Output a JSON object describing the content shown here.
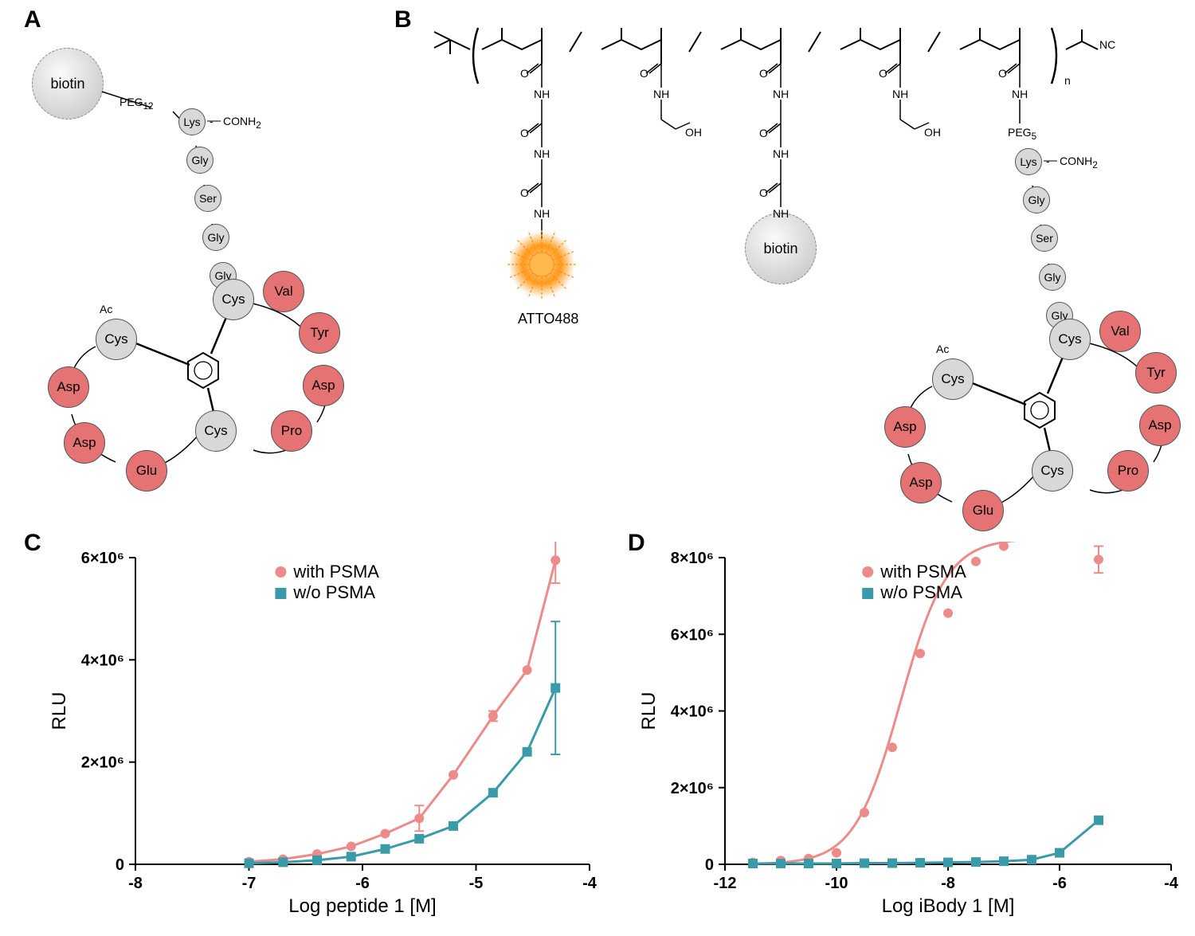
{
  "panels": {
    "A": "A",
    "B": "B",
    "C": "C",
    "D": "D"
  },
  "biotin_label": "biotin",
  "atto_label": "ATTO488",
  "peg12": "PEG",
  "peg12_sub": "12",
  "peg5": "PEG",
  "peg5_sub": "5",
  "conh2": "CONH",
  "conh2_sub": "2",
  "ac_label": "Ac",
  "nc_label": "NC",
  "n_sub": "n",
  "amino_acids": {
    "Lys": "Lys",
    "Gly": "Gly",
    "Ser": "Ser",
    "Cys": "Cys",
    "Val": "Val",
    "Tyr": "Tyr",
    "Asp": "Asp",
    "Pro": "Pro",
    "Glu": "Glu"
  },
  "chem_atoms": {
    "O": "O",
    "NH": "NH",
    "OH": "OH"
  },
  "legend": {
    "with": "with PSMA",
    "without": "w/o PSMA"
  },
  "colors": {
    "pink": "#e57373",
    "teal": "#3a9ba8",
    "pink_line": "#ed8b8b",
    "teal_line": "#3a9ba8",
    "axis": "#000000",
    "bg": "#ffffff"
  },
  "chartC": {
    "xlabel": "Log peptide 1 [M]",
    "ylabel": "RLU",
    "xlim": [
      -8,
      -4
    ],
    "ylim": [
      0,
      6000000.0
    ],
    "xticks": [
      -8,
      -7,
      -6,
      -5,
      -4
    ],
    "yticks": [
      0,
      2000000.0,
      4000000.0,
      6000000.0
    ],
    "ytick_labels": [
      "0",
      "2×10⁶",
      "4×10⁶",
      "6×10⁶"
    ],
    "series_with": {
      "x": [
        -7.0,
        -6.7,
        -6.4,
        -6.1,
        -5.8,
        -5.5,
        -5.2,
        -4.85,
        -4.55,
        -4.3
      ],
      "y": [
        50000.0,
        100000.0,
        200000.0,
        350000.0,
        600000.0,
        900000.0,
        1750000.0,
        2900000.0,
        3800000.0,
        5950000.0
      ],
      "err": [
        0,
        0,
        0,
        0,
        0,
        250000.0,
        0,
        100000.0,
        0,
        450000.0
      ]
    },
    "series_wo": {
      "x": [
        -7.0,
        -6.7,
        -6.4,
        -6.1,
        -5.8,
        -5.5,
        -5.2,
        -4.85,
        -4.55,
        -4.3
      ],
      "y": [
        20000.0,
        40000.0,
        80000.0,
        150000.0,
        300000.0,
        500000.0,
        750000.0,
        1400000.0,
        2200000.0,
        3450000.0
      ],
      "err": [
        0,
        0,
        0,
        0,
        0,
        0,
        0,
        0,
        0,
        1300000.0
      ]
    }
  },
  "chartD": {
    "xlabel": "Log iBody 1 [M]",
    "ylabel": "RLU",
    "xlim": [
      -12,
      -4
    ],
    "ylim": [
      0,
      8000000.0
    ],
    "xticks": [
      -12,
      -10,
      -8,
      -6,
      -4
    ],
    "yticks": [
      0,
      2000000.0,
      4000000.0,
      6000000.0,
      8000000.0
    ],
    "ytick_labels": [
      "0",
      "2×10⁶",
      "4×10⁶",
      "6×10⁶",
      "8×10⁶"
    ],
    "series_with": {
      "x": [
        -11.5,
        -11.0,
        -10.5,
        -10.0,
        -9.5,
        -9.0,
        -8.5,
        -8.0,
        -7.5,
        -7.0,
        -6.5,
        -6.0,
        -5.3
      ],
      "y": [
        50000.0,
        100000.0,
        150000.0,
        300000.0,
        1350000.0,
        3050000.0,
        5500000.0,
        6550000.0,
        7900000.0,
        8300000.0,
        8550000.0,
        8700000.0,
        7950000.0
      ],
      "err": [
        0,
        0,
        0,
        0,
        0,
        0,
        0,
        0,
        0,
        0,
        0,
        0,
        350000.0
      ]
    },
    "series_wo": {
      "x": [
        -11.5,
        -11.0,
        -10.5,
        -10.0,
        -9.5,
        -9.0,
        -8.5,
        -8.0,
        -7.5,
        -7.0,
        -6.5,
        -6.0,
        -5.3
      ],
      "y": [
        20000.0,
        20000.0,
        20000.0,
        20000.0,
        30000.0,
        30000.0,
        40000.0,
        50000.0,
        60000.0,
        80000.0,
        120000.0,
        300000.0,
        1150000.0
      ],
      "err": [
        0,
        0,
        0,
        0,
        0,
        0,
        0,
        0,
        0,
        0,
        0,
        0,
        0
      ]
    }
  }
}
